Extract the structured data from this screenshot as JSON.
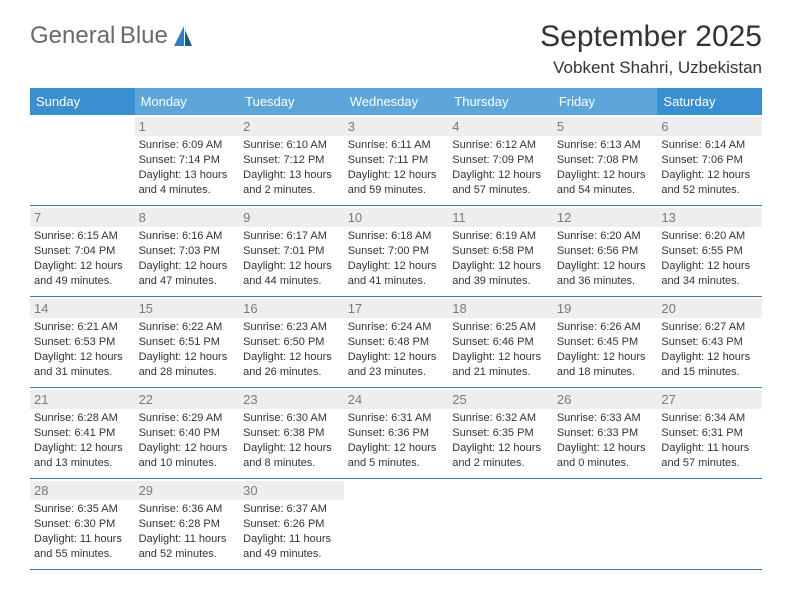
{
  "logo": {
    "textTop": "General",
    "textBottom": "Blue"
  },
  "title": "September 2025",
  "subtitle": "Vobkent Shahri, Uzbekistan",
  "dayHeaders": [
    "Sunday",
    "Monday",
    "Tuesday",
    "Wednesday",
    "Thursday",
    "Friday",
    "Saturday"
  ],
  "headerColors": {
    "weekend": "#3a8fd0",
    "weekday": "#5da6da"
  },
  "weeks": [
    [
      null,
      {
        "n": "1",
        "sr": "6:09 AM",
        "ss": "7:14 PM",
        "dl": "13 hours and 4 minutes."
      },
      {
        "n": "2",
        "sr": "6:10 AM",
        "ss": "7:12 PM",
        "dl": "13 hours and 2 minutes."
      },
      {
        "n": "3",
        "sr": "6:11 AM",
        "ss": "7:11 PM",
        "dl": "12 hours and 59 minutes."
      },
      {
        "n": "4",
        "sr": "6:12 AM",
        "ss": "7:09 PM",
        "dl": "12 hours and 57 minutes."
      },
      {
        "n": "5",
        "sr": "6:13 AM",
        "ss": "7:08 PM",
        "dl": "12 hours and 54 minutes."
      },
      {
        "n": "6",
        "sr": "6:14 AM",
        "ss": "7:06 PM",
        "dl": "12 hours and 52 minutes."
      }
    ],
    [
      {
        "n": "7",
        "sr": "6:15 AM",
        "ss": "7:04 PM",
        "dl": "12 hours and 49 minutes."
      },
      {
        "n": "8",
        "sr": "6:16 AM",
        "ss": "7:03 PM",
        "dl": "12 hours and 47 minutes."
      },
      {
        "n": "9",
        "sr": "6:17 AM",
        "ss": "7:01 PM",
        "dl": "12 hours and 44 minutes."
      },
      {
        "n": "10",
        "sr": "6:18 AM",
        "ss": "7:00 PM",
        "dl": "12 hours and 41 minutes."
      },
      {
        "n": "11",
        "sr": "6:19 AM",
        "ss": "6:58 PM",
        "dl": "12 hours and 39 minutes."
      },
      {
        "n": "12",
        "sr": "6:20 AM",
        "ss": "6:56 PM",
        "dl": "12 hours and 36 minutes."
      },
      {
        "n": "13",
        "sr": "6:20 AM",
        "ss": "6:55 PM",
        "dl": "12 hours and 34 minutes."
      }
    ],
    [
      {
        "n": "14",
        "sr": "6:21 AM",
        "ss": "6:53 PM",
        "dl": "12 hours and 31 minutes."
      },
      {
        "n": "15",
        "sr": "6:22 AM",
        "ss": "6:51 PM",
        "dl": "12 hours and 28 minutes."
      },
      {
        "n": "16",
        "sr": "6:23 AM",
        "ss": "6:50 PM",
        "dl": "12 hours and 26 minutes."
      },
      {
        "n": "17",
        "sr": "6:24 AM",
        "ss": "6:48 PM",
        "dl": "12 hours and 23 minutes."
      },
      {
        "n": "18",
        "sr": "6:25 AM",
        "ss": "6:46 PM",
        "dl": "12 hours and 21 minutes."
      },
      {
        "n": "19",
        "sr": "6:26 AM",
        "ss": "6:45 PM",
        "dl": "12 hours and 18 minutes."
      },
      {
        "n": "20",
        "sr": "6:27 AM",
        "ss": "6:43 PM",
        "dl": "12 hours and 15 minutes."
      }
    ],
    [
      {
        "n": "21",
        "sr": "6:28 AM",
        "ss": "6:41 PM",
        "dl": "12 hours and 13 minutes."
      },
      {
        "n": "22",
        "sr": "6:29 AM",
        "ss": "6:40 PM",
        "dl": "12 hours and 10 minutes."
      },
      {
        "n": "23",
        "sr": "6:30 AM",
        "ss": "6:38 PM",
        "dl": "12 hours and 8 minutes."
      },
      {
        "n": "24",
        "sr": "6:31 AM",
        "ss": "6:36 PM",
        "dl": "12 hours and 5 minutes."
      },
      {
        "n": "25",
        "sr": "6:32 AM",
        "ss": "6:35 PM",
        "dl": "12 hours and 2 minutes."
      },
      {
        "n": "26",
        "sr": "6:33 AM",
        "ss": "6:33 PM",
        "dl": "12 hours and 0 minutes."
      },
      {
        "n": "27",
        "sr": "6:34 AM",
        "ss": "6:31 PM",
        "dl": "11 hours and 57 minutes."
      }
    ],
    [
      {
        "n": "28",
        "sr": "6:35 AM",
        "ss": "6:30 PM",
        "dl": "11 hours and 55 minutes."
      },
      {
        "n": "29",
        "sr": "6:36 AM",
        "ss": "6:28 PM",
        "dl": "11 hours and 52 minutes."
      },
      {
        "n": "30",
        "sr": "6:37 AM",
        "ss": "6:26 PM",
        "dl": "11 hours and 49 minutes."
      },
      null,
      null,
      null,
      null
    ]
  ],
  "labels": {
    "sunrise": "Sunrise:",
    "sunset": "Sunset:",
    "daylight": "Daylight:"
  }
}
